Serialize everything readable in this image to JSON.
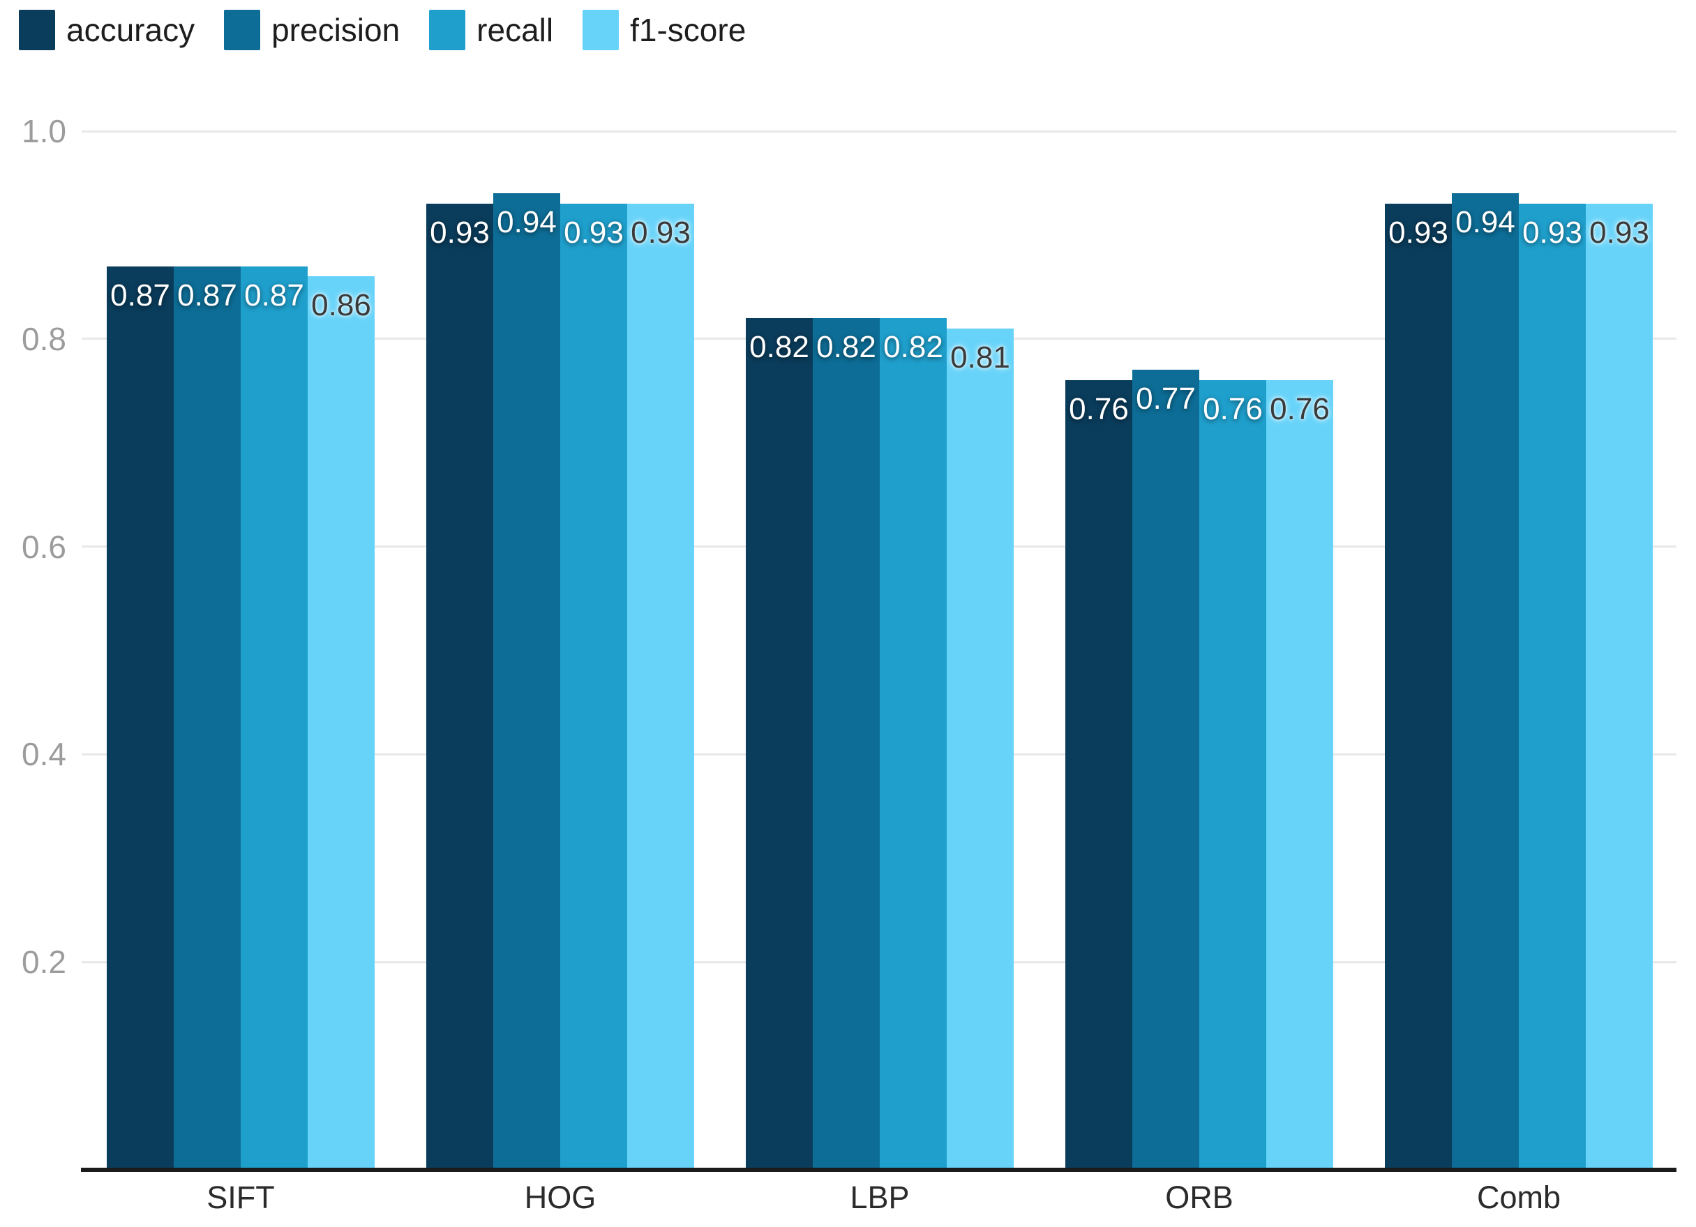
{
  "chart_data": {
    "type": "bar",
    "title": "",
    "xlabel": "",
    "ylabel": "",
    "categories": [
      "SIFT",
      "HOG",
      "LBP",
      "ORB",
      "Comb"
    ],
    "series": [
      {
        "name": "accuracy",
        "color": "#0a3c5b",
        "label_style": "light-text",
        "values": [
          0.87,
          0.93,
          0.82,
          0.76,
          0.93
        ]
      },
      {
        "name": "precision",
        "color": "#0d6d96",
        "label_style": "light-text",
        "values": [
          0.87,
          0.94,
          0.82,
          0.77,
          0.94
        ]
      },
      {
        "name": "recall",
        "color": "#1f9fcc",
        "label_style": "light-text",
        "values": [
          0.87,
          0.93,
          0.82,
          0.76,
          0.93
        ]
      },
      {
        "name": "f1-score",
        "color": "#67d3f9",
        "label_style": "dark-text",
        "values": [
          0.86,
          0.93,
          0.81,
          0.76,
          0.93
        ]
      }
    ],
    "bar_value_labels": {
      "SIFT": [
        "0.87",
        "0.87",
        "0.87",
        "0.86"
      ],
      "HOG": [
        "0.93",
        "0.94",
        "0.93",
        "0.93"
      ],
      "LBP": [
        "0.82",
        "0.82",
        "0.82",
        "0.81"
      ],
      "ORB": [
        "0.76",
        "0.77",
        "0.76",
        "0.76"
      ],
      "Comb": [
        "0.93",
        "0.94",
        "0.93",
        "0.93"
      ]
    },
    "ylim": [
      0,
      1.0
    ],
    "yticks": [
      {
        "label": "1.0",
        "value": 1.0
      },
      {
        "label": "0.8",
        "value": 0.8
      },
      {
        "label": "0.6",
        "value": 0.6
      },
      {
        "label": "0.4",
        "value": 0.4
      },
      {
        "label": "0.2",
        "value": 0.2
      }
    ],
    "grid": true,
    "legend_position": "top-left"
  },
  "colors": {
    "background": "#ffffff",
    "gridline": "#e8e8e8",
    "tick_label": "#9c9c9c",
    "category_label": "#2b2b2b",
    "baseline": "#1b1b1b"
  }
}
